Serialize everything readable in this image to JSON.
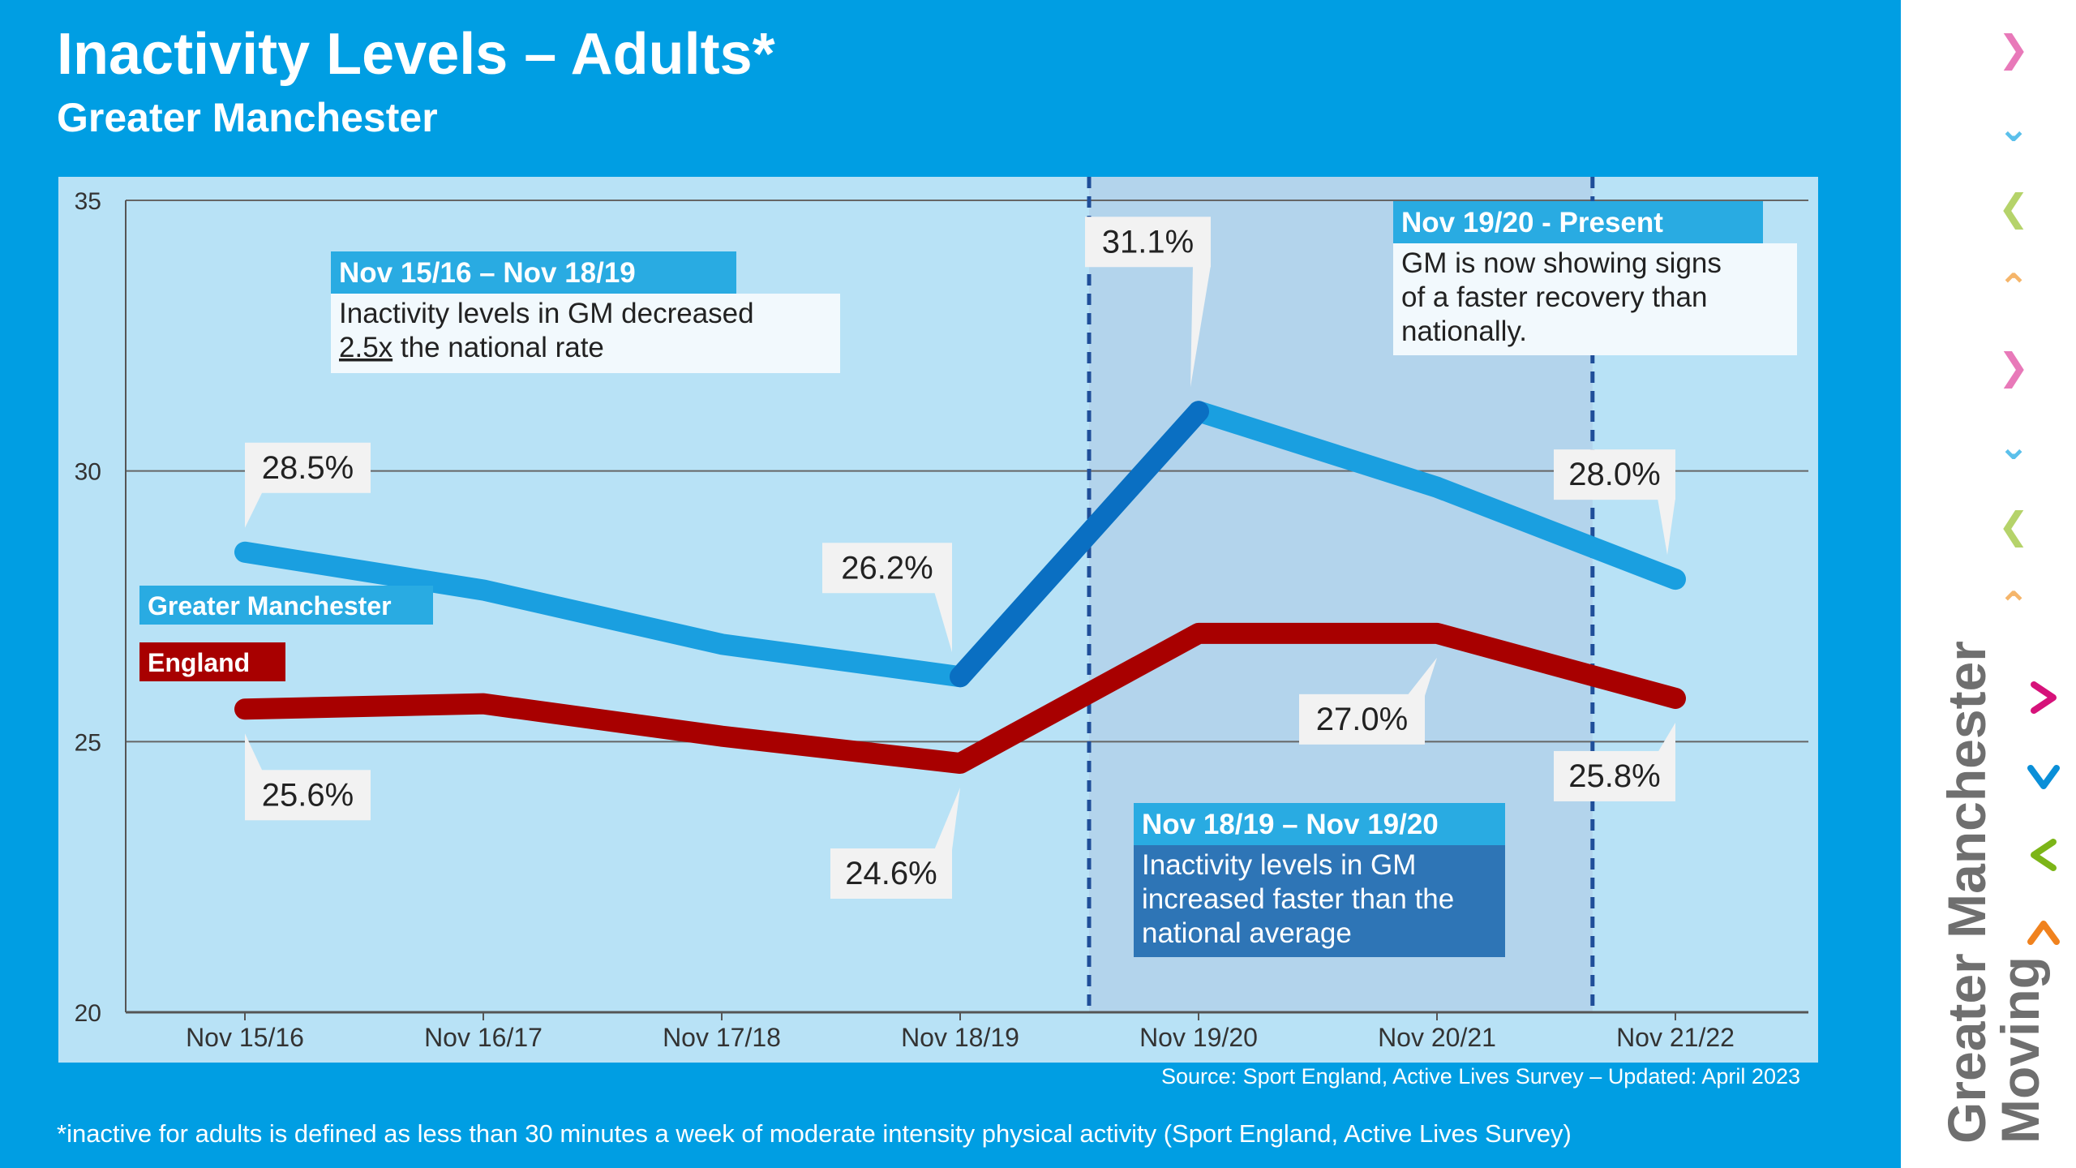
{
  "title": "Inactivity Levels – Adults*",
  "subtitle": "Greater Manchester",
  "source": "Source: Sport England, Active Lives Survey – Updated: April 2023",
  "footnote": "*inactive for adults is defined as less than 30 minutes a week of moderate intensity physical activity (Sport England, Active Lives Survey)",
  "colors": {
    "background": "#009ee3",
    "plot_area": "#b8e2f6",
    "highlight_band": "#b3d4ec",
    "gm_line": "#1a9fe0",
    "gm_line_rise": "#0a6fc2",
    "england_line": "#a80000",
    "annotation_header": "#29abe2",
    "annotation_dark": "#2e75b6"
  },
  "chart_data": {
    "type": "line",
    "title": "Inactivity Levels – Adults*",
    "categories": [
      "Nov 15/16",
      "Nov 16/17",
      "Nov 17/18",
      "Nov 18/19",
      "Nov 19/20",
      "Nov 20/21",
      "Nov 21/22"
    ],
    "ylim": [
      20,
      35
    ],
    "yticks": [
      20,
      25,
      30,
      35
    ],
    "grid": true,
    "series": [
      {
        "name": "Greater Manchester",
        "values": [
          28.5,
          27.8,
          26.8,
          26.2,
          31.1,
          29.7,
          28.0
        ]
      },
      {
        "name": "England",
        "values": [
          25.6,
          25.7,
          25.1,
          24.6,
          27.0,
          27.0,
          25.8
        ]
      }
    ],
    "legend_position": "left",
    "data_labels": [
      {
        "series": "Greater Manchester",
        "index": 0,
        "text": "28.5%"
      },
      {
        "series": "Greater Manchester",
        "index": 3,
        "text": "26.2%"
      },
      {
        "series": "Greater Manchester",
        "index": 4,
        "text": "31.1%"
      },
      {
        "series": "Greater Manchester",
        "index": 6,
        "text": "28.0%"
      },
      {
        "series": "England",
        "index": 0,
        "text": "25.6%"
      },
      {
        "series": "England",
        "index": 3,
        "text": "24.6%"
      },
      {
        "series": "England",
        "index": 5,
        "text": "27.0%"
      },
      {
        "series": "England",
        "index": 6,
        "text": "25.8%"
      }
    ],
    "highlight_band": {
      "from_x": 3.5,
      "to_x": 5.7
    },
    "annotations": [
      {
        "header": "Nov 15/16 – Nov 18/19",
        "body_pre": "Inactivity levels in GM decreased",
        "body_underline": "2.5x",
        "body_post": " the national rate"
      },
      {
        "header": "Nov 19/20 - Present",
        "body": [
          "GM is now showing signs",
          "of a faster recovery than",
          "nationally."
        ]
      },
      {
        "header": "Nov 18/19 – Nov 19/20",
        "body": [
          "Inactivity levels in GM",
          "increased faster than the",
          "national average"
        ]
      }
    ]
  },
  "logo": {
    "line1": "Greater Manchester",
    "line2": "Moving",
    "chevrons": [
      {
        "glyph": ">",
        "color": "#e879b9"
      },
      {
        "glyph": "v",
        "color": "#5bc0eb"
      },
      {
        "glyph": "<",
        "color": "#b5d36a"
      },
      {
        "glyph": "^",
        "color": "#f5b56a"
      },
      {
        "glyph": ">",
        "color": "#e879b9"
      },
      {
        "glyph": "v",
        "color": "#5bc0eb"
      },
      {
        "glyph": "<",
        "color": "#b5d36a"
      },
      {
        "glyph": "^",
        "color": "#f5b56a"
      }
    ],
    "logo_chevrons": [
      {
        "glyph": ">",
        "color": "#d6127a"
      },
      {
        "glyph": "v",
        "color": "#0a8fd8"
      },
      {
        "glyph": "<",
        "color": "#7cb518"
      },
      {
        "glyph": "^",
        "color": "#f0821e"
      }
    ]
  }
}
